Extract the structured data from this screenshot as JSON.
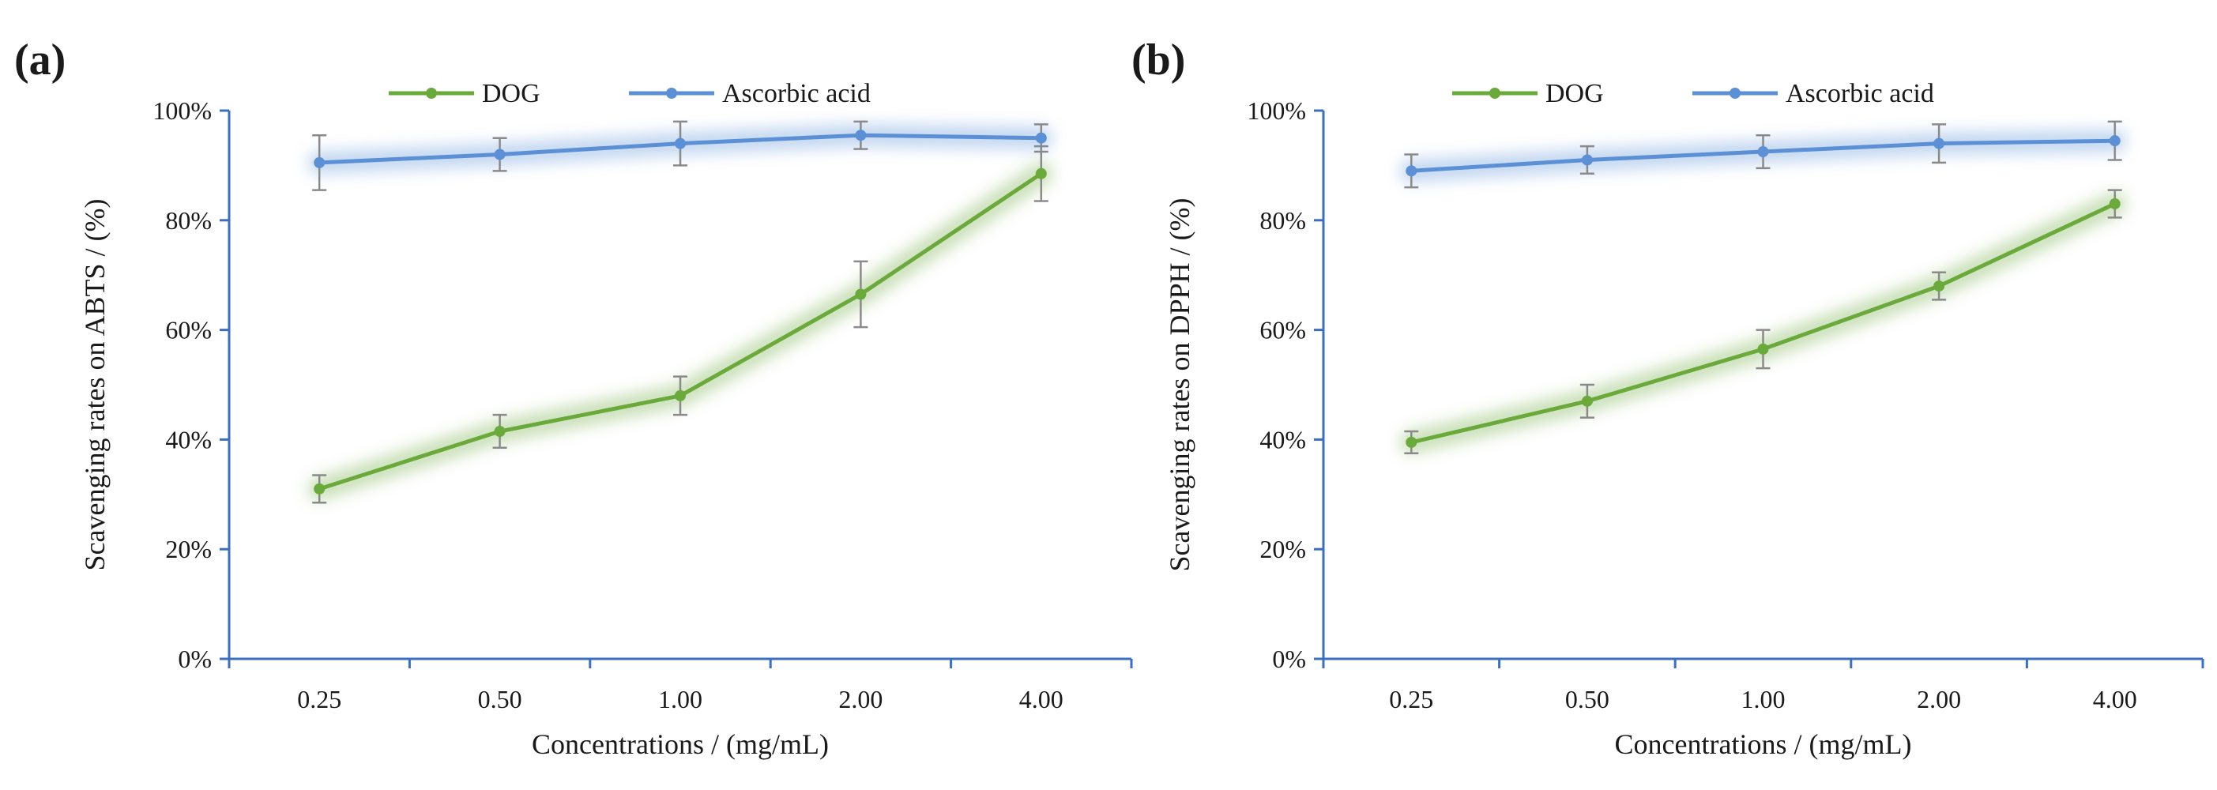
{
  "chart_data": [
    {
      "type": "line",
      "panel_label": "(a)",
      "title": "",
      "xlabel": "Concentrations / (mg/mL)",
      "ylabel": "Scavenging rates on ABTS  / (%)",
      "categories": [
        "0.25",
        "0.50",
        "1.00",
        "2.00",
        "4.00"
      ],
      "ylim": [
        0,
        100
      ],
      "yticks": [
        0,
        20,
        40,
        60,
        80,
        100
      ],
      "ytick_format": "%",
      "grid": false,
      "legend_position": "top",
      "series": [
        {
          "name": "DOG",
          "color": "#6aaa3a",
          "values": [
            31,
            41.5,
            48,
            66.5,
            88.5
          ],
          "errors": [
            2.5,
            3,
            3.5,
            6,
            5
          ]
        },
        {
          "name": "Ascorbic acid",
          "color": "#5b8fd6",
          "values": [
            90.5,
            92,
            94,
            95.5,
            95
          ],
          "errors": [
            5,
            3,
            4,
            2.5,
            2.5
          ]
        }
      ]
    },
    {
      "type": "line",
      "panel_label": "(b)",
      "title": "",
      "xlabel": "Concentrations / (mg/mL)",
      "ylabel": "Scavenging rates on DPPH  / (%)",
      "categories": [
        "0.25",
        "0.50",
        "1.00",
        "2.00",
        "4.00"
      ],
      "ylim": [
        0,
        100
      ],
      "yticks": [
        0,
        20,
        40,
        60,
        80,
        100
      ],
      "ytick_format": "%",
      "grid": false,
      "legend_position": "top",
      "series": [
        {
          "name": "DOG",
          "color": "#6aaa3a",
          "values": [
            39.5,
            47,
            56.5,
            68,
            83
          ],
          "errors": [
            2,
            3,
            3.5,
            2.5,
            2.5
          ]
        },
        {
          "name": "Ascorbic acid",
          "color": "#5b8fd6",
          "values": [
            89,
            91,
            92.5,
            94,
            94.5
          ],
          "errors": [
            3,
            2.5,
            3,
            3.5,
            3.5
          ]
        }
      ]
    }
  ]
}
